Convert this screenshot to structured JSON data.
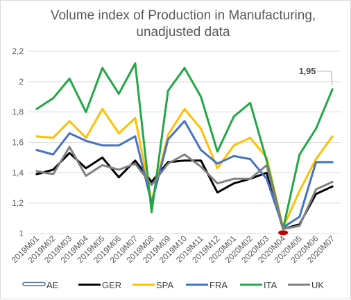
{
  "chart_data": {
    "type": "line",
    "title": "Volume index of Production in Manufacturing,",
    "subtitle": "unadjusted data",
    "xlabel": "",
    "ylabel": "",
    "ylim": [
      1,
      2.2
    ],
    "yticks": [
      "1",
      "1,2",
      "1,4",
      "1,6",
      "1,8",
      "2",
      "2,2"
    ],
    "grid": true,
    "legend_position": "bottom",
    "categories": [
      "2019M01",
      "2019M02",
      "2019M03",
      "2019M04",
      "2019M05",
      "2019M06",
      "2019M07",
      "2019M08",
      "2019M09",
      "2019M10",
      "2019M11",
      "2019M12",
      "2020M01",
      "2020M02",
      "2020M03",
      "2020M04",
      "2020M05",
      "2020M06",
      "2020M07"
    ],
    "series": [
      {
        "name": "AE",
        "color": "#2E5597",
        "style": "outline",
        "values": [
          null,
          null,
          null,
          null,
          null,
          null,
          null,
          null,
          null,
          null,
          null,
          null,
          null,
          null,
          null,
          null,
          null,
          null,
          null
        ]
      },
      {
        "name": "GER",
        "color": "#000000",
        "values": [
          1.39,
          1.42,
          1.53,
          1.43,
          1.5,
          1.37,
          1.48,
          1.34,
          1.47,
          1.48,
          1.48,
          1.27,
          1.33,
          1.36,
          1.4,
          1.03,
          1.06,
          1.26,
          1.31
        ]
      },
      {
        "name": "SPA",
        "color": "#FFC000",
        "values": [
          1.64,
          1.63,
          1.74,
          1.63,
          1.82,
          1.66,
          1.76,
          1.21,
          1.65,
          1.82,
          1.69,
          1.43,
          1.58,
          1.63,
          1.5,
          1.04,
          1.28,
          1.49,
          1.64
        ]
      },
      {
        "name": "FRA",
        "color": "#4472C4",
        "values": [
          1.55,
          1.52,
          1.66,
          1.61,
          1.58,
          1.58,
          1.64,
          1.2,
          1.62,
          1.74,
          1.55,
          1.46,
          1.51,
          1.49,
          1.36,
          1.04,
          1.11,
          1.47,
          1.47
        ]
      },
      {
        "name": "ITA",
        "color": "#22A745",
        "values": [
          1.82,
          1.89,
          2.02,
          1.8,
          2.09,
          1.92,
          2.12,
          1.14,
          1.94,
          2.09,
          1.9,
          1.54,
          1.77,
          1.86,
          1.48,
          1.03,
          1.52,
          1.69,
          1.95
        ]
      },
      {
        "name": "UK",
        "color": "#808080",
        "values": [
          1.41,
          1.39,
          1.57,
          1.38,
          1.45,
          1.42,
          1.46,
          1.32,
          1.46,
          1.52,
          1.44,
          1.33,
          1.36,
          1.36,
          1.45,
          1.03,
          1.05,
          1.29,
          1.34
        ]
      }
    ],
    "annotations": [
      {
        "text": "1,95",
        "series": "ITA",
        "category": "2020M07"
      }
    ],
    "highlight_point": {
      "category": "2020M04",
      "value": 1.005,
      "color": "#C00000"
    }
  }
}
